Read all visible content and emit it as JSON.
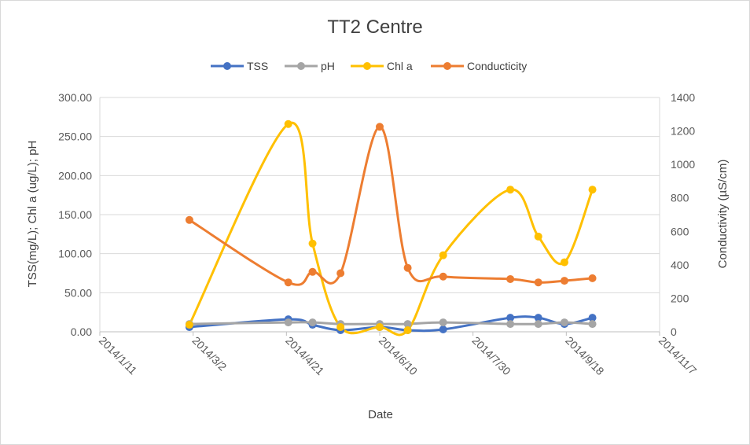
{
  "chart_data": {
    "type": "line",
    "title": "TT2 Centre",
    "xlabel": "Date",
    "ylabel_left": "TSS(mg/L); Chl a (ug/L); pH",
    "ylabel_right": "Conductivity  (µS/cm)",
    "x_ticks": [
      "2014/1/11",
      "2014/3/2",
      "2014/4/21",
      "2014/6/10",
      "2014/7/30",
      "2014/9/18",
      "2014/11/7"
    ],
    "x_range": [
      "2014-01-11",
      "2014-11-07"
    ],
    "ylim_left": [
      0,
      300
    ],
    "ylim_right": [
      0,
      1400
    ],
    "y_ticks_left": [
      "0.00",
      "50.00",
      "100.00",
      "150.00",
      "200.00",
      "250.00",
      "300.00"
    ],
    "y_ticks_right": [
      "0",
      "200",
      "400",
      "600",
      "800",
      "1000",
      "1200",
      "1400"
    ],
    "grid": "horizontal",
    "legend_position": "top",
    "smoothed": true,
    "series": [
      {
        "name": "TSS",
        "axis": "left",
        "color": "#4472C4",
        "points": [
          {
            "x": "2014-02-28",
            "y": 6
          },
          {
            "x": "2014-04-22",
            "y": 16
          },
          {
            "x": "2014-05-05",
            "y": 9
          },
          {
            "x": "2014-05-20",
            "y": 2
          },
          {
            "x": "2014-06-10",
            "y": 6
          },
          {
            "x": "2014-06-25",
            "y": 2
          },
          {
            "x": "2014-07-14",
            "y": 3
          },
          {
            "x": "2014-08-19",
            "y": 18
          },
          {
            "x": "2014-09-03",
            "y": 18
          },
          {
            "x": "2014-09-17",
            "y": 10
          },
          {
            "x": "2014-10-02",
            "y": 18
          }
        ]
      },
      {
        "name": "pH",
        "axis": "left",
        "color": "#A5A5A5",
        "points": [
          {
            "x": "2014-02-28",
            "y": 10
          },
          {
            "x": "2014-04-22",
            "y": 12
          },
          {
            "x": "2014-05-05",
            "y": 12
          },
          {
            "x": "2014-05-20",
            "y": 10
          },
          {
            "x": "2014-06-10",
            "y": 10
          },
          {
            "x": "2014-06-25",
            "y": 10
          },
          {
            "x": "2014-07-14",
            "y": 12
          },
          {
            "x": "2014-08-19",
            "y": 10
          },
          {
            "x": "2014-09-03",
            "y": 10
          },
          {
            "x": "2014-09-17",
            "y": 12
          },
          {
            "x": "2014-10-02",
            "y": 10
          }
        ]
      },
      {
        "name": "Chl a",
        "axis": "left",
        "color": "#FFC000",
        "points": [
          {
            "x": "2014-02-28",
            "y": 9
          },
          {
            "x": "2014-04-22",
            "y": 266
          },
          {
            "x": "2014-05-05",
            "y": 113
          },
          {
            "x": "2014-05-20",
            "y": 6
          },
          {
            "x": "2014-06-10",
            "y": 6
          },
          {
            "x": "2014-06-25",
            "y": 2
          },
          {
            "x": "2014-07-14",
            "y": 98
          },
          {
            "x": "2014-08-19",
            "y": 182
          },
          {
            "x": "2014-09-03",
            "y": 122
          },
          {
            "x": "2014-09-17",
            "y": 89
          },
          {
            "x": "2014-10-02",
            "y": 182
          }
        ]
      },
      {
        "name": "Conducticity",
        "axis": "right",
        "color": "#ED7D31",
        "points": [
          {
            "x": "2014-02-28",
            "y": 668
          },
          {
            "x": "2014-04-22",
            "y": 295
          },
          {
            "x": "2014-05-05",
            "y": 358
          },
          {
            "x": "2014-05-20",
            "y": 350
          },
          {
            "x": "2014-06-10",
            "y": 1225
          },
          {
            "x": "2014-06-25",
            "y": 382
          },
          {
            "x": "2014-07-14",
            "y": 330
          },
          {
            "x": "2014-08-19",
            "y": 315
          },
          {
            "x": "2014-09-03",
            "y": 295
          },
          {
            "x": "2014-09-17",
            "y": 305
          },
          {
            "x": "2014-10-02",
            "y": 320
          }
        ]
      }
    ]
  }
}
